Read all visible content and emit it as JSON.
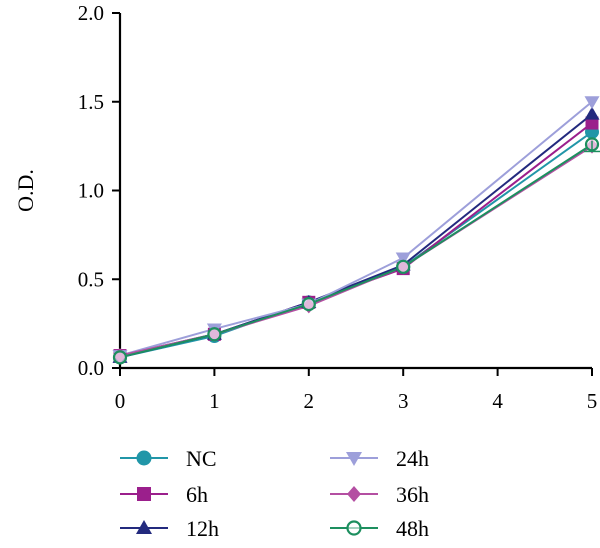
{
  "chart_data": {
    "type": "line",
    "title": "",
    "xlabel": "",
    "ylabel": "O.D.",
    "x": [
      0,
      1,
      2,
      3,
      5
    ],
    "xlim": [
      0,
      5
    ],
    "ylim": [
      0,
      2.0
    ],
    "xticks": [
      "0",
      "1",
      "2",
      "3",
      "4",
      "5"
    ],
    "yticks": [
      "0.0",
      "0.5",
      "1.0",
      "1.5",
      "2.0"
    ],
    "grid": false,
    "legend_position": "bottom",
    "series": [
      {
        "name": "NC",
        "color": "#2196a8",
        "marker": "circle",
        "values": [
          0.06,
          0.18,
          0.37,
          0.57,
          1.33
        ]
      },
      {
        "name": "6h",
        "color": "#9b1f8c",
        "marker": "square",
        "values": [
          0.07,
          0.19,
          0.37,
          0.56,
          1.38
        ]
      },
      {
        "name": "12h",
        "color": "#232a7e",
        "marker": "triangle-up",
        "values": [
          0.06,
          0.19,
          0.37,
          0.58,
          1.43
        ]
      },
      {
        "name": "24h",
        "color": "#9d9fda",
        "marker": "triangle-down",
        "values": [
          0.07,
          0.22,
          0.36,
          0.62,
          1.5
        ]
      },
      {
        "name": "36h",
        "color": "#b44fa2",
        "marker": "diamond",
        "values": [
          0.07,
          0.19,
          0.35,
          0.57,
          1.25
        ]
      },
      {
        "name": "48h",
        "color": "#1d8f5f",
        "marker": "circle-open",
        "values": [
          0.06,
          0.19,
          0.36,
          0.57,
          1.26
        ]
      }
    ]
  }
}
